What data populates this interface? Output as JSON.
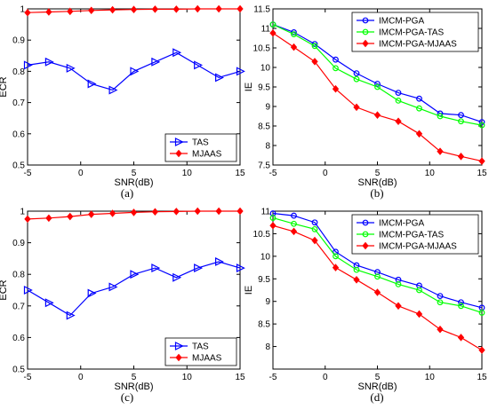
{
  "chart_data": [
    {
      "panel": "(a)",
      "type": "line",
      "xlabel": "SNR(dB)",
      "ylabel": "ECR",
      "xlim": [
        -5,
        15
      ],
      "ylim": [
        0.5,
        1.0
      ],
      "xticks": [
        -5,
        0,
        5,
        10,
        15
      ],
      "yticks": [
        0.5,
        0.6,
        0.7,
        0.8,
        0.9,
        1.0
      ],
      "legend_position": "bottom-right",
      "x": [
        -5,
        -3,
        -1,
        1,
        3,
        5,
        7,
        9,
        11,
        13,
        15
      ],
      "series": [
        {
          "name": "TAS",
          "color": "#0000ff",
          "marker": "triangle-right",
          "values": [
            0.82,
            0.83,
            0.81,
            0.76,
            0.74,
            0.8,
            0.83,
            0.86,
            0.82,
            0.78,
            0.8
          ]
        },
        {
          "name": "MJAAS",
          "color": "#ff0000",
          "marker": "diamond",
          "values": [
            0.988,
            0.99,
            0.992,
            0.995,
            0.997,
            0.998,
            0.999,
            0.999,
            1.0,
            1.0,
            1.0
          ]
        }
      ]
    },
    {
      "panel": "(b)",
      "type": "line",
      "xlabel": "SNR(dB)",
      "ylabel": "IE",
      "xlim": [
        -5,
        15
      ],
      "ylim": [
        7.5,
        11.5
      ],
      "xticks": [
        -5,
        0,
        5,
        10,
        15
      ],
      "yticks": [
        7.5,
        8,
        8.5,
        9,
        9.5,
        10,
        10.5,
        11,
        11.5
      ],
      "legend_position": "top-right",
      "x": [
        -5,
        -3,
        -1,
        1,
        3,
        5,
        7,
        9,
        11,
        13,
        15
      ],
      "series": [
        {
          "name": "IMCM-PGA",
          "color": "#0000ff",
          "marker": "circle",
          "values": [
            11.1,
            10.9,
            10.6,
            10.2,
            9.85,
            9.58,
            9.35,
            9.2,
            8.82,
            8.78,
            8.6
          ]
        },
        {
          "name": "IMCM-PGA-TAS",
          "color": "#00ff00",
          "marker": "circle",
          "values": [
            11.1,
            10.85,
            10.55,
            9.98,
            9.7,
            9.5,
            9.15,
            8.95,
            8.75,
            8.62,
            8.52
          ]
        },
        {
          "name": "IMCM-PGA-MJAAS",
          "color": "#ff0000",
          "marker": "diamond",
          "values": [
            10.88,
            10.52,
            10.15,
            9.45,
            8.98,
            8.78,
            8.62,
            8.3,
            7.85,
            7.72,
            7.6
          ]
        }
      ]
    },
    {
      "panel": "(c)",
      "type": "line",
      "xlabel": "SNR(dB)",
      "ylabel": "ECR",
      "xlim": [
        -5,
        15
      ],
      "ylim": [
        0.5,
        1.0
      ],
      "xticks": [
        -5,
        0,
        5,
        10,
        15
      ],
      "yticks": [
        0.5,
        0.6,
        0.7,
        0.8,
        0.9,
        1.0
      ],
      "legend_position": "bottom-right",
      "x": [
        -5,
        -3,
        -1,
        1,
        3,
        5,
        7,
        9,
        11,
        13,
        15
      ],
      "series": [
        {
          "name": "TAS",
          "color": "#0000ff",
          "marker": "triangle-right",
          "values": [
            0.75,
            0.71,
            0.67,
            0.74,
            0.76,
            0.8,
            0.82,
            0.79,
            0.82,
            0.84,
            0.82
          ]
        },
        {
          "name": "MJAAS",
          "color": "#ff0000",
          "marker": "diamond",
          "values": [
            0.975,
            0.978,
            0.983,
            0.99,
            0.993,
            0.996,
            0.998,
            0.999,
            1.0,
            1.0,
            1.0
          ]
        }
      ]
    },
    {
      "panel": "(d)",
      "type": "line",
      "xlabel": "SNR(dB)",
      "ylabel": "IE",
      "xlim": [
        -5,
        15
      ],
      "ylim": [
        7.5,
        11
      ],
      "xticks": [
        -5,
        0,
        5,
        10,
        15
      ],
      "yticks": [
        8,
        8.5,
        9,
        9.5,
        10,
        10.5,
        11
      ],
      "legend_position": "top-right",
      "x": [
        -5,
        -3,
        -1,
        1,
        3,
        5,
        7,
        9,
        11,
        13,
        15
      ],
      "series": [
        {
          "name": "IMCM-PGA",
          "color": "#0000ff",
          "marker": "circle",
          "values": [
            10.95,
            10.9,
            10.75,
            10.1,
            9.8,
            9.65,
            9.48,
            9.35,
            9.12,
            8.98,
            8.86
          ]
        },
        {
          "name": "IMCM-PGA-TAS",
          "color": "#00ff00",
          "marker": "circle",
          "values": [
            10.85,
            10.72,
            10.6,
            10.0,
            9.7,
            9.55,
            9.38,
            9.25,
            8.98,
            8.9,
            8.75
          ]
        },
        {
          "name": "IMCM-PGA-MJAAS",
          "color": "#ff0000",
          "marker": "diamond",
          "values": [
            10.68,
            10.55,
            10.35,
            9.75,
            9.48,
            9.2,
            8.9,
            8.72,
            8.38,
            8.2,
            7.92
          ]
        }
      ]
    }
  ]
}
